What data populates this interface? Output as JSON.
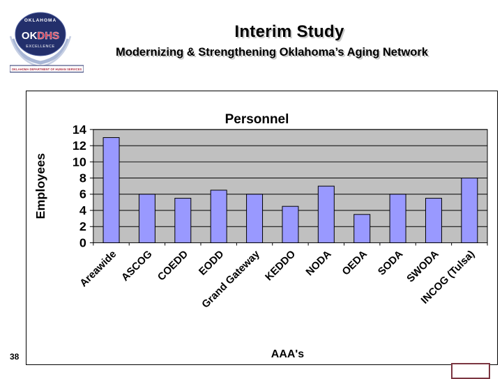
{
  "header": {
    "title": "Interim Study",
    "subtitle": "Modernizing & Strengthening Oklahoma’s Aging Network"
  },
  "logo": {
    "arc_text": "OKLAHOMA",
    "ok": "OK",
    "dhs": "DHS",
    "tagline": "EXCELLENCE",
    "banner": "OKLAHOMA DEPARTMENT OF HUMAN SERVICES",
    "navy": "#232f6b",
    "red": "#d6334d",
    "wreath": "#a9b7d6"
  },
  "footer": {
    "page_number": "38"
  },
  "chart_data": {
    "type": "bar",
    "title": "Personnel",
    "xlabel": "AAA's",
    "ylabel": "Employees",
    "categories": [
      "Areawide",
      "ASCOG",
      "COEDD",
      "EODD",
      "Grand Gateway",
      "KEDDO",
      "NODA",
      "OEDA",
      "SODA",
      "SWODA",
      "INCOG (Tulsa)"
    ],
    "values": [
      13,
      6,
      5.5,
      6.5,
      6,
      4.5,
      7,
      3.5,
      6,
      5.5,
      8
    ],
    "ylim": [
      0,
      14
    ],
    "yticks": [
      0,
      2,
      4,
      6,
      8,
      10,
      12,
      14
    ],
    "grid": true,
    "legend": false,
    "bar_color": "#9999ff",
    "plot_bg": "#c0c0c0",
    "axis_color": "#000000"
  },
  "decor": {
    "corner_box_border": "#7b3541"
  }
}
